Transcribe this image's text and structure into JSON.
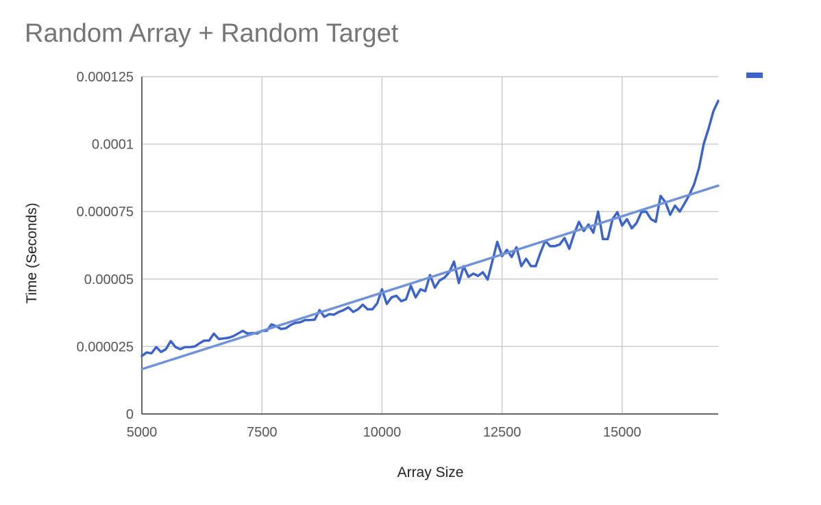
{
  "chart_data": {
    "type": "line",
    "title": "Random Array + Random Target",
    "xlabel": "Array Size",
    "ylabel": "Time (Seconds)",
    "xlim": [
      5000,
      17000
    ],
    "ylim": [
      0,
      0.000125
    ],
    "xticks": [
      5000,
      7500,
      10000,
      12500,
      15000
    ],
    "xtick_labels": [
      "5000",
      "7500",
      "10000",
      "12500",
      "15000"
    ],
    "yticks": [
      0,
      2.5e-05,
      5e-05,
      7.5e-05,
      0.0001,
      0.000125
    ],
    "ytick_labels": [
      "0",
      "0.000025",
      "0.00005",
      "0.000075",
      "0.0001",
      "0.000125"
    ],
    "grid": true,
    "legend_position": "top-right",
    "series": [
      {
        "color": "#3c64c8",
        "x": [
          5000,
          5100,
          5200,
          5300,
          5400,
          5500,
          5600,
          5700,
          5800,
          5900,
          6000,
          6100,
          6200,
          6300,
          6400,
          6500,
          6600,
          6700,
          6800,
          6900,
          7000,
          7100,
          7200,
          7300,
          7400,
          7500,
          7600,
          7700,
          7800,
          7900,
          8000,
          8100,
          8200,
          8300,
          8400,
          8500,
          8600,
          8700,
          8800,
          8900,
          9000,
          9100,
          9200,
          9300,
          9400,
          9500,
          9600,
          9700,
          9800,
          9900,
          10000,
          10100,
          10200,
          10300,
          10400,
          10500,
          10600,
          10700,
          10800,
          10900,
          11000,
          11100,
          11200,
          11300,
          11400,
          11500,
          11600,
          11700,
          11800,
          11900,
          12000,
          12100,
          12200,
          12300,
          12400,
          12500,
          12600,
          12700,
          12800,
          12900,
          13000,
          13100,
          13200,
          13300,
          13400,
          13500,
          13600,
          13700,
          13800,
          13900,
          14000,
          14100,
          14200,
          14300,
          14400,
          14500,
          14600,
          14700,
          14800,
          14900,
          15000,
          15100,
          15200,
          15300,
          15400,
          15500,
          15600,
          15700,
          15800,
          15900,
          16000,
          16100,
          16200,
          16300,
          16400,
          16500,
          16600,
          16700,
          16800,
          16900,
          17000
        ],
        "y": [
          2.15e-05,
          2.28e-05,
          2.25e-05,
          2.48e-05,
          2.3e-05,
          2.4e-05,
          2.7e-05,
          2.48e-05,
          2.4e-05,
          2.48e-05,
          2.48e-05,
          2.5e-05,
          2.62e-05,
          2.72e-05,
          2.72e-05,
          2.98e-05,
          2.78e-05,
          2.8e-05,
          2.82e-05,
          2.88e-05,
          2.98e-05,
          3.08e-05,
          2.98e-05,
          3e-05,
          2.98e-05,
          3.08e-05,
          3.08e-05,
          3.32e-05,
          3.25e-05,
          3.15e-05,
          3.18e-05,
          3.3e-05,
          3.38e-05,
          3.4e-05,
          3.48e-05,
          3.48e-05,
          3.5e-05,
          3.85e-05,
          3.6e-05,
          3.7e-05,
          3.68e-05,
          3.78e-05,
          3.85e-05,
          3.95e-05,
          3.78e-05,
          3.88e-05,
          4.05e-05,
          3.88e-05,
          3.88e-05,
          4.1e-05,
          4.62e-05,
          4.08e-05,
          4.32e-05,
          4.38e-05,
          4.18e-05,
          4.25e-05,
          4.75e-05,
          4.32e-05,
          4.62e-05,
          4.55e-05,
          5.15e-05,
          4.68e-05,
          4.95e-05,
          5.05e-05,
          5.25e-05,
          5.65e-05,
          4.85e-05,
          5.48e-05,
          5.08e-05,
          5.2e-05,
          5.12e-05,
          5.25e-05,
          4.98e-05,
          5.68e-05,
          6.38e-05,
          5.85e-05,
          6.08e-05,
          5.82e-05,
          6.18e-05,
          5.48e-05,
          5.75e-05,
          5.48e-05,
          5.48e-05,
          5.98e-05,
          6.42e-05,
          6.22e-05,
          6.22e-05,
          6.28e-05,
          6.52e-05,
          6.12e-05,
          6.68e-05,
          7.12e-05,
          6.78e-05,
          7.02e-05,
          6.72e-05,
          7.5e-05,
          6.48e-05,
          6.48e-05,
          7.22e-05,
          7.48e-05,
          6.98e-05,
          7.22e-05,
          6.88e-05,
          7.08e-05,
          7.48e-05,
          7.5e-05,
          7.22e-05,
          7.12e-05,
          8.08e-05,
          7.85e-05,
          7.38e-05,
          7.72e-05,
          7.5e-05,
          7.8e-05,
          8.12e-05,
          8.52e-05,
          9.12e-05,
          0.0001002,
          0.0001058,
          0.0001122,
          0.000116
        ]
      },
      {
        "color": "#6f92d8",
        "x": [
          5000,
          17000
        ],
        "y": [
          1.66e-05,
          8.46e-05
        ]
      }
    ]
  },
  "legend": {
    "swatch_color": "#3c64c8"
  }
}
